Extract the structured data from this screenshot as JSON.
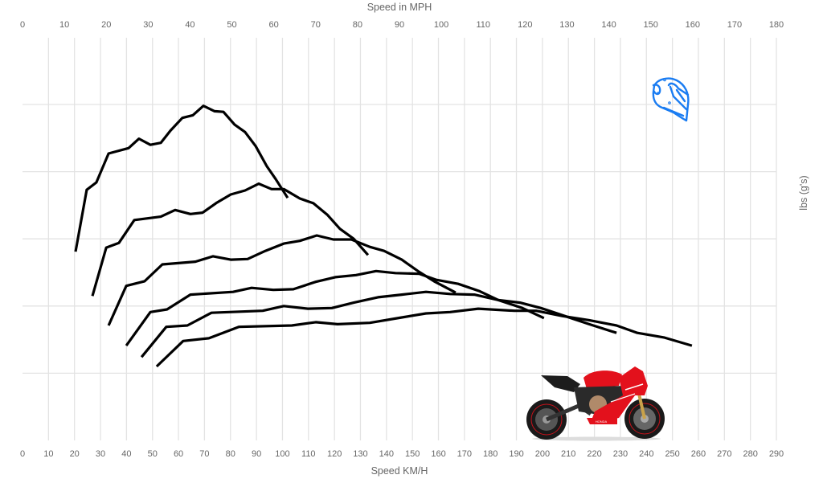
{
  "chart_data": {
    "type": "line",
    "title": "",
    "xlabel": "Speed KM/H",
    "x2label": "Speed in MPH",
    "ylabel": "lbs (g's)",
    "xlim": [
      0,
      290
    ],
    "x2lim": [
      0,
      180
    ],
    "ylim": [
      0,
      6
    ],
    "x_ticks": [
      0,
      10,
      20,
      30,
      40,
      50,
      60,
      70,
      80,
      90,
      100,
      110,
      120,
      130,
      140,
      150,
      160,
      170,
      180,
      190,
      200,
      210,
      220,
      230,
      240,
      250,
      260,
      270,
      280,
      290
    ],
    "x2_ticks": [
      0,
      10,
      20,
      30,
      40,
      50,
      60,
      70,
      80,
      90,
      100,
      110,
      120,
      130,
      140,
      150,
      160,
      170,
      180
    ],
    "y_tick_labels_shown": false,
    "grid": true,
    "line_color": "#000000",
    "series": [
      {
        "x": [
          20.4,
          24.7,
          28.4,
          33.1,
          40.8,
          44.8,
          49.2,
          53.2,
          56.9,
          61.5,
          65.5,
          69.6,
          73.9,
          77.3,
          81.6,
          85.6,
          89.7,
          94.0,
          97.4,
          102.0
        ],
        "y": [
          2.81,
          3.73,
          3.84,
          4.27,
          4.35,
          4.49,
          4.4,
          4.43,
          4.61,
          4.8,
          4.84,
          4.98,
          4.9,
          4.89,
          4.7,
          4.59,
          4.38,
          4.08,
          3.89,
          3.61
        ]
      },
      {
        "x": [
          26.9,
          32.2,
          37.1,
          43.0,
          53.2,
          58.7,
          64.6,
          69.3,
          74.8,
          80.1,
          85.6,
          90.9,
          95.8,
          100.5,
          106.7,
          111.9,
          117.2,
          122.1,
          127.4,
          132.9
        ],
        "y": [
          2.15,
          2.87,
          2.94,
          3.28,
          3.33,
          3.43,
          3.37,
          3.39,
          3.54,
          3.66,
          3.72,
          3.82,
          3.74,
          3.74,
          3.6,
          3.53,
          3.36,
          3.15,
          3.0,
          2.76
        ]
      },
      {
        "x": [
          33.1,
          39.9,
          47.0,
          53.8,
          66.5,
          73.3,
          80.1,
          86.6,
          93.4,
          100.5,
          106.7,
          113.2,
          119.6,
          126.5,
          133.6,
          139.1,
          145.9,
          152.1,
          158.3,
          166.6
        ],
        "y": [
          1.71,
          2.3,
          2.37,
          2.62,
          2.66,
          2.74,
          2.69,
          2.7,
          2.82,
          2.93,
          2.97,
          3.05,
          2.99,
          2.99,
          2.88,
          2.82,
          2.69,
          2.52,
          2.37,
          2.2
        ]
      },
      {
        "x": [
          39.9,
          49.2,
          55.6,
          64.6,
          81.0,
          88.1,
          96.5,
          104.2,
          112.8,
          120.3,
          128.3,
          136.0,
          143.5,
          152.7,
          159.2,
          167.6,
          175.9,
          183.0,
          192.3,
          200.6
        ],
        "y": [
          1.41,
          1.91,
          1.95,
          2.17,
          2.21,
          2.27,
          2.24,
          2.25,
          2.36,
          2.43,
          2.46,
          2.52,
          2.49,
          2.48,
          2.39,
          2.33,
          2.22,
          2.09,
          1.97,
          1.82
        ]
      },
      {
        "x": [
          45.8,
          55.3,
          63.4,
          72.7,
          92.4,
          100.5,
          109.8,
          119.0,
          127.4,
          136.7,
          145.9,
          155.2,
          164.5,
          173.8,
          183.0,
          191.4,
          199.4,
          208.7,
          218.0,
          228.5
        ],
        "y": [
          1.24,
          1.69,
          1.71,
          1.9,
          1.93,
          2.0,
          1.96,
          1.97,
          2.05,
          2.13,
          2.17,
          2.21,
          2.18,
          2.17,
          2.09,
          2.05,
          1.97,
          1.85,
          1.73,
          1.6
        ]
      },
      {
        "x": [
          51.6,
          61.8,
          71.7,
          83.2,
          103.6,
          112.8,
          121.2,
          133.6,
          145.9,
          155.2,
          164.5,
          175.3,
          189.2,
          197.6,
          207.8,
          218.0,
          228.5,
          236.5,
          247.0,
          257.5
        ],
        "y": [
          1.1,
          1.48,
          1.52,
          1.69,
          1.71,
          1.76,
          1.73,
          1.75,
          1.83,
          1.89,
          1.91,
          1.96,
          1.93,
          1.93,
          1.85,
          1.79,
          1.71,
          1.6,
          1.53,
          1.41
        ]
      }
    ]
  },
  "decorations": {
    "helmet_icon": "helmet-icon",
    "helmet_color": "#1a7cf2",
    "motorcycle_image": "motorcycle-image",
    "motorcycle_color": "#e3111c",
    "motorcycle_logo": "HONDA"
  }
}
